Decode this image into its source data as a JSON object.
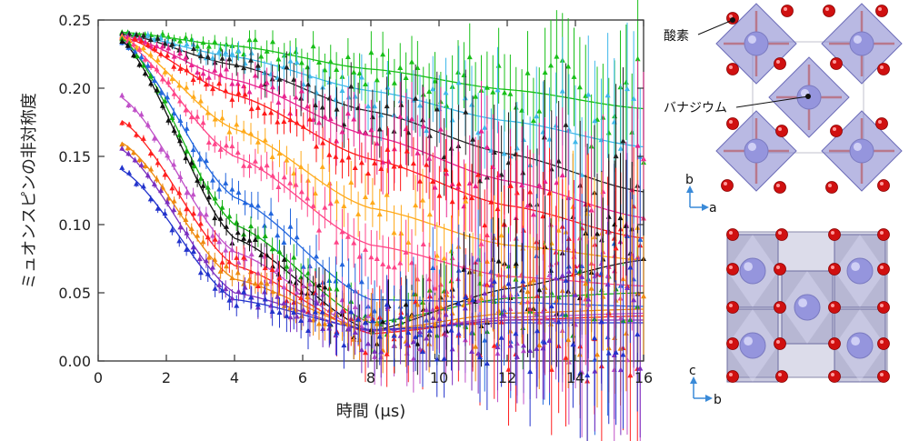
{
  "chart_data": {
    "type": "scatter",
    "title": "",
    "xlabel": "時間 (μs)",
    "ylabel": "ミュオンスピンの非対称度",
    "xlim": [
      0,
      16
    ],
    "ylim": [
      0,
      0.25
    ],
    "x_ticks": [
      "0",
      "2",
      "4",
      "6",
      "8",
      "10",
      "12",
      "14",
      "16"
    ],
    "y_ticks": [
      "0.00",
      "0.05",
      "0.10",
      "0.15",
      "0.20",
      "0.25"
    ],
    "grid": false,
    "legend": "none",
    "marker": "triangle with error bars, solid fit lines",
    "series": [
      {
        "color": "#19c019",
        "values_at_t": {
          "t": [
            0.7,
            4,
            8,
            12,
            16
          ],
          "y": [
            0.241,
            0.231,
            0.214,
            0.199,
            0.185
          ]
        }
      },
      {
        "color": "#3fb8ea",
        "values_at_t": {
          "t": [
            0.7,
            4,
            8,
            12,
            16
          ],
          "y": [
            0.24,
            0.223,
            0.198,
            0.176,
            0.157
          ]
        }
      },
      {
        "color": "#222222",
        "values_at_t": {
          "t": [
            0.7,
            4,
            8,
            12,
            16
          ],
          "y": [
            0.24,
            0.217,
            0.183,
            0.152,
            0.124
          ]
        }
      },
      {
        "color": "#e8238f",
        "values_at_t": {
          "t": [
            0.7,
            4,
            8,
            12,
            16
          ],
          "y": [
            0.239,
            0.206,
            0.165,
            0.132,
            0.105
          ]
        }
      },
      {
        "color": "#ff1a1a",
        "values_at_t": {
          "t": [
            0.7,
            4,
            8,
            12,
            16
          ],
          "y": [
            0.238,
            0.195,
            0.148,
            0.114,
            0.09
          ]
        }
      },
      {
        "color": "#ffaa1a",
        "values_at_t": {
          "t": [
            0.7,
            4,
            8,
            12,
            16
          ],
          "y": [
            0.237,
            0.17,
            0.112,
            0.085,
            0.074
          ]
        }
      },
      {
        "color": "#ff4488",
        "values_at_t": {
          "t": [
            0.7,
            4,
            8,
            12,
            16
          ],
          "y": [
            0.236,
            0.15,
            0.085,
            0.062,
            0.055
          ]
        }
      },
      {
        "color": "#2266dd",
        "values_at_t": {
          "t": [
            0.7,
            4,
            8,
            12,
            16
          ],
          "y": [
            0.235,
            0.12,
            0.045,
            0.043,
            0.04
          ]
        }
      },
      {
        "color": "#12b012",
        "values_at_t": {
          "t": [
            0.7,
            4,
            8,
            12,
            16
          ],
          "y": [
            0.237,
            0.1,
            0.028,
            0.046,
            0.05
          ]
        }
      },
      {
        "color": "#111111",
        "values_at_t": {
          "t": [
            0.7,
            4,
            8,
            12,
            16
          ],
          "y": [
            0.235,
            0.09,
            0.022,
            0.053,
            0.074
          ]
        }
      },
      {
        "color": "#c050c8",
        "values_at_t": {
          "t": [
            0.7,
            4,
            8,
            12,
            16
          ],
          "y": [
            0.193,
            0.08,
            0.02,
            0.032,
            0.035
          ]
        }
      },
      {
        "color": "#ff2020",
        "values_at_t": {
          "t": [
            0.7,
            4,
            8,
            12,
            16
          ],
          "y": [
            0.176,
            0.07,
            0.02,
            0.03,
            0.033
          ]
        }
      },
      {
        "color": "#ee8a10",
        "values_at_t": {
          "t": [
            0.7,
            4,
            8,
            12,
            16
          ],
          "y": [
            0.16,
            0.06,
            0.022,
            0.035,
            0.038
          ]
        }
      },
      {
        "color": "#7b2fc0",
        "values_at_t": {
          "t": [
            0.7,
            4,
            8,
            12,
            16
          ],
          "y": [
            0.155,
            0.05,
            0.022,
            0.03,
            0.03
          ]
        }
      },
      {
        "color": "#2233cc",
        "values_at_t": {
          "t": [
            0.7,
            4,
            8,
            12,
            16
          ],
          "y": [
            0.14,
            0.045,
            0.023,
            0.028,
            0.028
          ]
        }
      }
    ]
  },
  "structure": {
    "top_labels": {
      "oxygen": "酸素",
      "vanadium": "バナジウム"
    },
    "top_axes": {
      "vertical": "b",
      "horizontal": "a"
    },
    "bottom_axes": {
      "vertical": "c",
      "horizontal": "b"
    },
    "colors": {
      "oxygen": "#d01010",
      "vanadium": "#9595dd",
      "octahedron": "#7f7fcc",
      "edge": "#c8c8d8"
    }
  }
}
